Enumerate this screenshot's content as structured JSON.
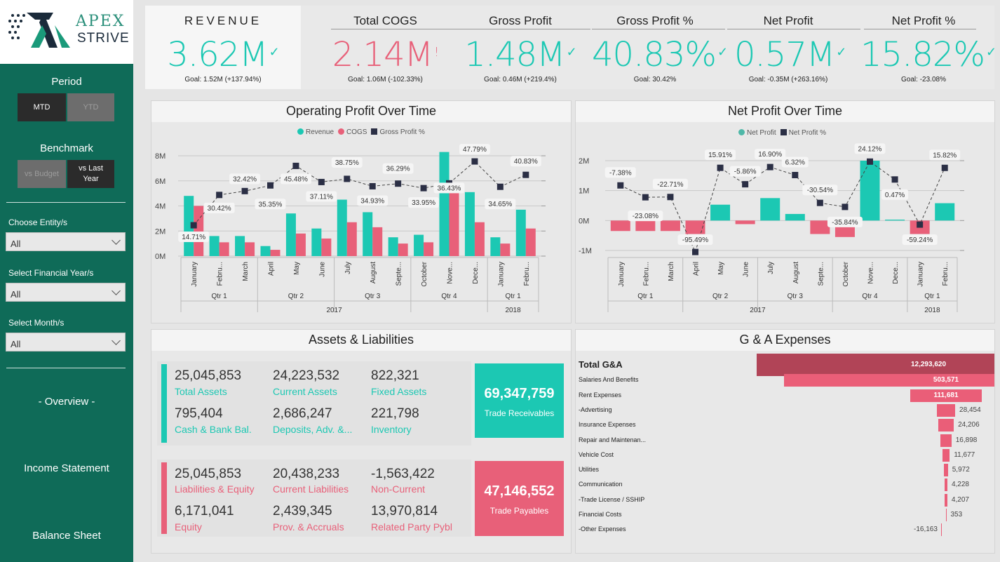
{
  "brand": {
    "name_top": "APEX",
    "name_bottom": "STRIVE"
  },
  "sidebar": {
    "period_title": "Period",
    "period_options": [
      "MTD",
      "YTD"
    ],
    "benchmark_title": "Benchmark",
    "benchmark_options": [
      "vs Budget",
      "vs Last Year"
    ],
    "filters": [
      {
        "label": "Choose Entity/s",
        "value": "All"
      },
      {
        "label": "Select Financial Year/s",
        "value": "All"
      },
      {
        "label": "Select Month/s",
        "value": "All"
      }
    ],
    "nav": [
      "- Overview -",
      "Income Statement",
      "Balance Sheet"
    ]
  },
  "kpis": [
    {
      "title": "REVENUE",
      "value": "3.62M",
      "mark": "✓",
      "goal": "Goal: 1.52M (+137.94%)",
      "status": "good"
    },
    {
      "title": "Total COGS",
      "value": "2.14M",
      "mark": "!",
      "goal": "Goal: 1.06M (-102.33%)",
      "status": "bad"
    },
    {
      "title": "Gross Profit",
      "value": "1.48M",
      "mark": "✓",
      "goal": "Goal: 0.46M (+219.4%)",
      "status": "good"
    },
    {
      "title": "Gross Profit %",
      "value": "40.83%",
      "mark": "✓",
      "goal": "Goal: 30.42%",
      "status": "good"
    },
    {
      "title": "Net Profit",
      "value": "0.57M",
      "mark": "✓",
      "goal": "Goal: -0.35M (+263.16%)",
      "status": "good"
    },
    {
      "title": "Net Profit %",
      "value": "15.82%",
      "mark": "✓",
      "goal": "Goal: -23.08%",
      "status": "good"
    }
  ],
  "colors": {
    "teal": "#1cc8b3",
    "red": "#e86079",
    "navy": "#2b2f45",
    "ga_total": "#b14457",
    "ga_bar": "#ea5e78"
  },
  "chart_data": [
    {
      "type": "bar",
      "title": "Operating Profit Over Time",
      "legend": [
        "Revenue",
        "COGS",
        "Gross Profit %"
      ],
      "categories": [
        "January",
        "Febru...",
        "March",
        "April",
        "May",
        "June",
        "July",
        "August",
        "Septe...",
        "October",
        "Nove...",
        "Dece...",
        "January",
        "Febru..."
      ],
      "quarters": [
        "Qtr 1",
        "Qtr 2",
        "Qtr 3",
        "Qtr 4",
        "Qtr 1"
      ],
      "years": [
        "2017",
        "2018"
      ],
      "y_ticks": [
        "8M",
        "6M",
        "4M",
        "2M",
        "0M"
      ],
      "ylim": [
        0,
        8
      ],
      "series": [
        {
          "name": "Revenue",
          "values": [
            4.8,
            1.6,
            1.6,
            0.8,
            3.4,
            2.2,
            4.5,
            3.5,
            1.5,
            1.7,
            8.3,
            5.1,
            1.5,
            3.7
          ]
        },
        {
          "name": "COGS",
          "values": [
            4.0,
            1.1,
            1.1,
            0.5,
            1.8,
            1.4,
            2.7,
            2.3,
            1.0,
            1.1,
            5.3,
            2.7,
            1.0,
            2.2
          ]
        },
        {
          "name": "Gross Profit %",
          "values": [
            14.71,
            30.42,
            32.42,
            35.35,
            45.48,
            37.11,
            38.75,
            34.93,
            36.29,
            33.95,
            36.43,
            47.79,
            34.65,
            40.83
          ]
        }
      ],
      "pct_labels": [
        "14.71%",
        "30.42%",
        "32.42%",
        "35.35%",
        "45.48%",
        "37.11%",
        "38.75%",
        "34.93%",
        "36.29%",
        "33.95%",
        "36.43%",
        "47.79%",
        "34.65%",
        "40.83%"
      ]
    },
    {
      "type": "bar",
      "title": "Net Profit Over Time",
      "legend": [
        "Net Profit",
        "Net Profit %"
      ],
      "categories": [
        "January",
        "Febru...",
        "March",
        "April",
        "May",
        "June",
        "July",
        "August",
        "Septe...",
        "October",
        "Nove...",
        "Dece...",
        "January",
        "Febru..."
      ],
      "quarters": [
        "Qtr 1",
        "Qtr 2",
        "Qtr 3",
        "Qtr 4",
        "Qtr 1"
      ],
      "years": [
        "2017",
        "2018"
      ],
      "y_ticks": [
        "2M",
        "1M",
        "0M",
        "-1M"
      ],
      "ylim": [
        -1,
        2
      ],
      "series": [
        {
          "name": "Net Profit",
          "values": [
            -0.35,
            -0.35,
            -0.35,
            -0.45,
            0.53,
            -0.12,
            0.75,
            0.22,
            -0.45,
            -0.55,
            2.0,
            0.03,
            -0.45,
            0.58
          ]
        },
        {
          "name": "Net Profit %",
          "values": [
            -7.38,
            -23.08,
            -22.71,
            -95.49,
            15.91,
            -5.86,
            16.9,
            6.32,
            -30.54,
            -35.84,
            24.12,
            0.47,
            -59.24,
            15.82
          ]
        }
      ],
      "pct_labels": [
        "-7.38%",
        "-23.08%",
        "-22.71%",
        "-95.49%",
        "15.91%",
        "-5.86%",
        "16.90%",
        "6.32%",
        "-30.54%",
        "-35.84%",
        "24.12%",
        "0.47%",
        "-59.24%",
        "15.82%"
      ]
    },
    {
      "type": "bar",
      "title": "G & A Expenses",
      "categories": [
        "Total G&A",
        "Salaries And Benefits",
        "Rent Expenses",
        "-Advertising",
        "Insurance Expenses",
        "Repair and Maintenan...",
        "Vehicle Cost",
        "Utilities",
        "Communication",
        "-Trade License / SSHIP",
        "Financial Costs",
        "-Other Expenses"
      ],
      "values": [
        12293620,
        503571,
        111681,
        28454,
        24206,
        16898,
        11677,
        5972,
        4228,
        4207,
        353,
        -16163
      ],
      "value_labels": [
        "12,293,620",
        "503,571",
        "111,681",
        "28,454",
        "24,206",
        "16,898",
        "11,677",
        "5,972",
        "4,228",
        "4,207",
        "353",
        "-16,163"
      ]
    }
  ],
  "assets_liabilities": {
    "title": "Assets & Liabilities",
    "assets": [
      {
        "value": "25,045,853",
        "label": "Total Assets"
      },
      {
        "value": "24,223,532",
        "label": "Current Assets"
      },
      {
        "value": "822,321",
        "label": "Fixed Assets"
      },
      {
        "value": "795,404",
        "label": "Cash & Bank Bal."
      },
      {
        "value": "2,686,247",
        "label": "Deposits, Adv. &..."
      },
      {
        "value": "221,798",
        "label": "Inventory"
      }
    ],
    "liabilities": [
      {
        "value": "25,045,853",
        "label": "Liabilities & Equity"
      },
      {
        "value": "20,438,233",
        "label": "Current Liabilities"
      },
      {
        "value": "-1,563,422",
        "label": "Non-Current"
      },
      {
        "value": "6,171,041",
        "label": "Equity"
      },
      {
        "value": "2,439,345",
        "label": "Prov. & Accruals"
      },
      {
        "value": "13,970,814",
        "label": "Related Party Pybl"
      }
    ],
    "trade_receivables": {
      "value": "69,347,759",
      "label": "Trade Receivables"
    },
    "trade_payables": {
      "value": "47,146,552",
      "label": "Trade Payables"
    }
  }
}
